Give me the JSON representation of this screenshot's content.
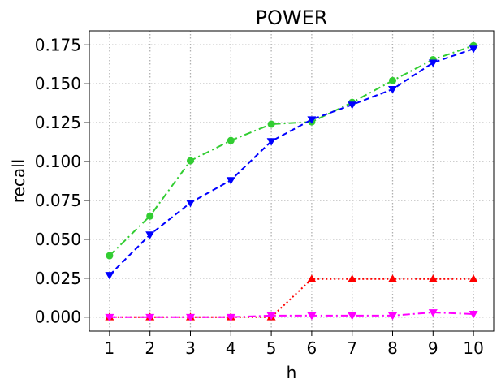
{
  "chart_data": {
    "type": "line",
    "title": "POWER",
    "xlabel": "h",
    "ylabel": "recall",
    "x": [
      1,
      2,
      3,
      4,
      5,
      6,
      7,
      8,
      9,
      10
    ],
    "xlim": [
      0.5,
      10.5
    ],
    "ylim": [
      -0.009,
      0.184
    ],
    "yticks": [
      0.0,
      0.025,
      0.05,
      0.075,
      0.1,
      0.125,
      0.15,
      0.175
    ],
    "ytick_labels": [
      "0.000",
      "0.025",
      "0.050",
      "0.075",
      "0.100",
      "0.125",
      "0.150",
      "0.175"
    ],
    "xtick_labels": [
      "1",
      "2",
      "3",
      "4",
      "5",
      "6",
      "7",
      "8",
      "9",
      "10"
    ],
    "grid": true,
    "legend": "none",
    "series": [
      {
        "color": "#32cd32",
        "linestyle": "dashdot",
        "marker": "circle",
        "values": [
          0.0395,
          0.065,
          0.1005,
          0.1135,
          0.124,
          0.1255,
          0.138,
          0.152,
          0.1655,
          0.1745
        ]
      },
      {
        "color": "#0000ff",
        "linestyle": "dashed",
        "marker": "triangle-down",
        "values": [
          0.027,
          0.053,
          0.0735,
          0.088,
          0.113,
          0.127,
          0.1365,
          0.1465,
          0.1635,
          0.1725
        ]
      },
      {
        "color": "#ff0000",
        "linestyle": "dotted",
        "marker": "triangle-up",
        "values": [
          0.0,
          0.0,
          0.0,
          0.0,
          0.0,
          0.0245,
          0.0245,
          0.0245,
          0.0245,
          0.0245
        ]
      },
      {
        "color": "#ff00ff",
        "linestyle": "dashdot",
        "marker": "triangle-down",
        "values": [
          0.0,
          0.0,
          0.0,
          0.0,
          0.001,
          0.001,
          0.001,
          0.001,
          0.003,
          0.002
        ]
      }
    ]
  }
}
